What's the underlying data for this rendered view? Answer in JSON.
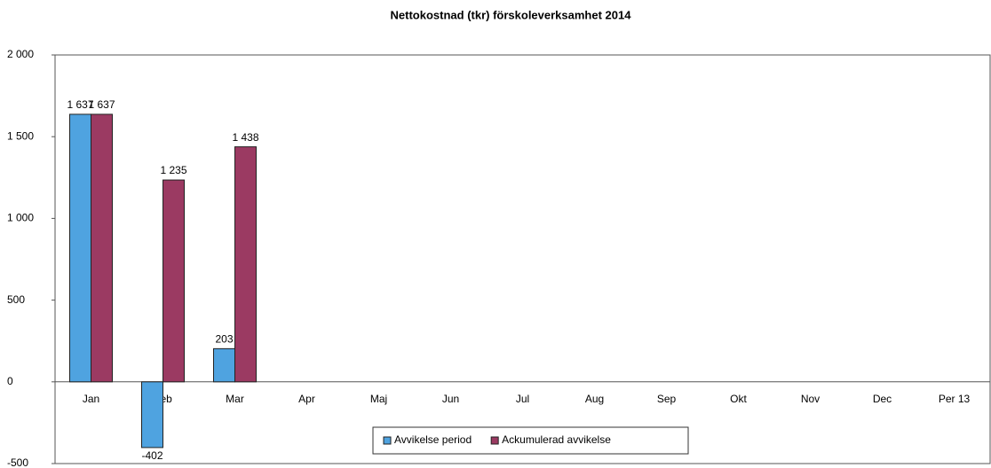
{
  "chart_data": {
    "type": "bar",
    "title": "Nettokostnad (tkr) förskoleverksamhet 2014",
    "categories": [
      "Jan",
      "Feb",
      "Mar",
      "Apr",
      "Maj",
      "Jun",
      "Jul",
      "Aug",
      "Sep",
      "Okt",
      "Nov",
      "Dec",
      "Per 13"
    ],
    "series": [
      {
        "name": "Avvikelse period",
        "color": "#4fa3e0",
        "values": [
          1637,
          -402,
          203,
          null,
          null,
          null,
          null,
          null,
          null,
          null,
          null,
          null,
          null
        ],
        "value_labels": [
          "1 637",
          "-402",
          "203",
          null,
          null,
          null,
          null,
          null,
          null,
          null,
          null,
          null,
          null
        ]
      },
      {
        "name": "Ackumulerad avvikelse",
        "color": "#9b3a62",
        "values": [
          1637,
          1235,
          1438,
          null,
          null,
          null,
          null,
          null,
          null,
          null,
          null,
          null,
          null
        ],
        "value_labels": [
          "1 637",
          "1 235",
          "1 438",
          null,
          null,
          null,
          null,
          null,
          null,
          null,
          null,
          null,
          null
        ]
      }
    ],
    "ylim": [
      -500,
      2000
    ],
    "yticks": [
      {
        "value": -500,
        "label": "-500"
      },
      0,
      500,
      {
        "value": 1000,
        "label": "1 000"
      },
      {
        "value": 1500,
        "label": "1 500"
      },
      {
        "value": 2000,
        "label": "2 000"
      }
    ],
    "grid": false,
    "legend": "bottom"
  }
}
